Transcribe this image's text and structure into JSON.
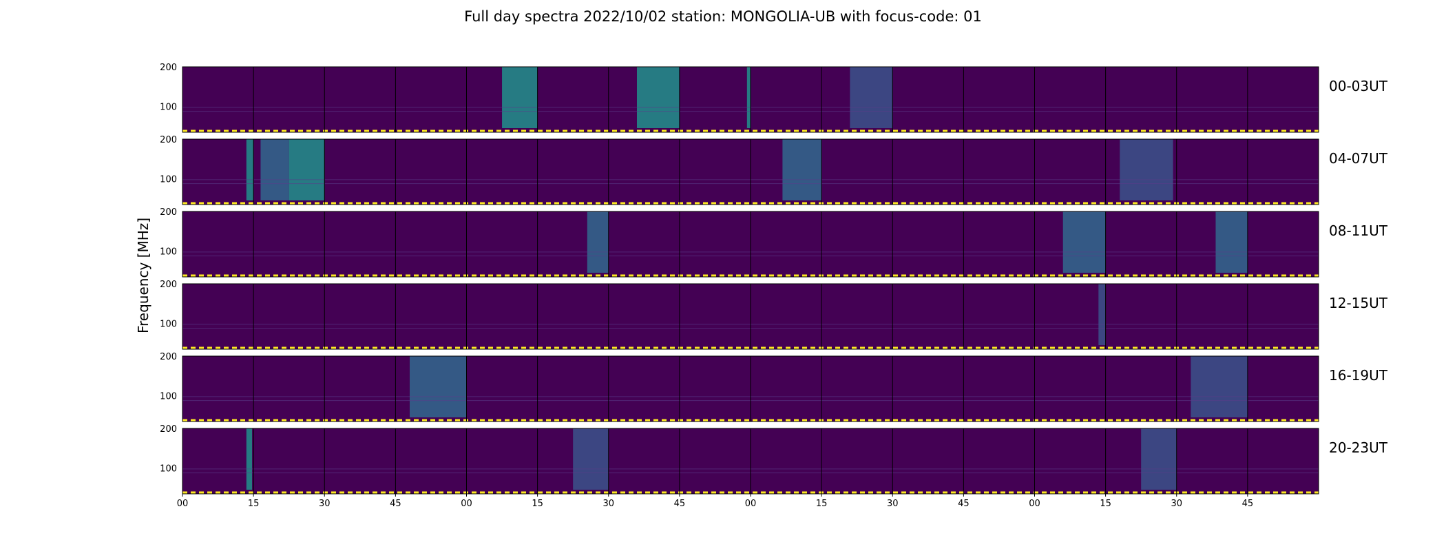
{
  "chart_data": {
    "type": "heatmap",
    "title": "Full day spectra 2022/10/02 station: MONGOLIA-UB with focus-code: 01",
    "ylabel": "Frequency [MHz]",
    "xlabel": "",
    "colormap": "viridis",
    "panels_per_row": 16,
    "panel_minutes": 15,
    "y_ticks": [
      "200",
      "100"
    ],
    "x_tick_labels": [
      "00",
      "15",
      "30",
      "45",
      "00",
      "15",
      "30",
      "45",
      "00",
      "15",
      "30",
      "45",
      "00",
      "15",
      "30",
      "45"
    ],
    "rows": [
      {
        "label": "00-03UT",
        "bursts": [
          {
            "panel": 4,
            "start": 0.5,
            "end": 1.0,
            "level": "high"
          },
          {
            "panel": 6,
            "start": 0.4,
            "end": 1.0,
            "level": "high"
          },
          {
            "panel": 7,
            "start": 0.95,
            "end": 1.0,
            "level": "high"
          },
          {
            "panel": 9,
            "start": 0.4,
            "end": 1.0,
            "level": "low"
          }
        ]
      },
      {
        "label": "04-07UT",
        "bursts": [
          {
            "panel": 0,
            "start": 0.9,
            "end": 1.0,
            "level": "high"
          },
          {
            "panel": 1,
            "start": 0.1,
            "end": 0.5,
            "level": "mid"
          },
          {
            "panel": 1,
            "start": 0.5,
            "end": 1.0,
            "level": "high"
          },
          {
            "panel": 8,
            "start": 0.45,
            "end": 1.0,
            "level": "mid"
          },
          {
            "panel": 13,
            "start": 0.2,
            "end": 0.95,
            "level": "low"
          }
        ]
      },
      {
        "label": "08-11UT",
        "bursts": [
          {
            "panel": 5,
            "start": 0.7,
            "end": 1.0,
            "level": "mid"
          },
          {
            "panel": 12,
            "start": 0.4,
            "end": 1.0,
            "level": "mid"
          },
          {
            "panel": 14,
            "start": 0.55,
            "end": 1.0,
            "level": "mid"
          }
        ]
      },
      {
        "label": "12-15UT",
        "bursts": [
          {
            "panel": 12,
            "start": 0.9,
            "end": 1.0,
            "level": "low"
          }
        ]
      },
      {
        "label": "16-19UT",
        "bursts": [
          {
            "panel": 3,
            "start": 0.2,
            "end": 1.0,
            "level": "mid"
          },
          {
            "panel": 14,
            "start": 0.2,
            "end": 1.0,
            "level": "low"
          }
        ]
      },
      {
        "label": "20-23UT",
        "bursts": [
          {
            "panel": 0,
            "start": 0.9,
            "end": 0.98,
            "level": "high"
          },
          {
            "panel": 5,
            "start": 0.5,
            "end": 1.0,
            "level": "low"
          },
          {
            "panel": 13,
            "start": 0.5,
            "end": 1.0,
            "level": "low"
          }
        ]
      }
    ],
    "legend": "none",
    "grid": false
  },
  "colors": {
    "background": "#440154",
    "low": "#3b528b",
    "mid": "#31688e",
    "high": "#21918c",
    "marker": "#fde725"
  }
}
